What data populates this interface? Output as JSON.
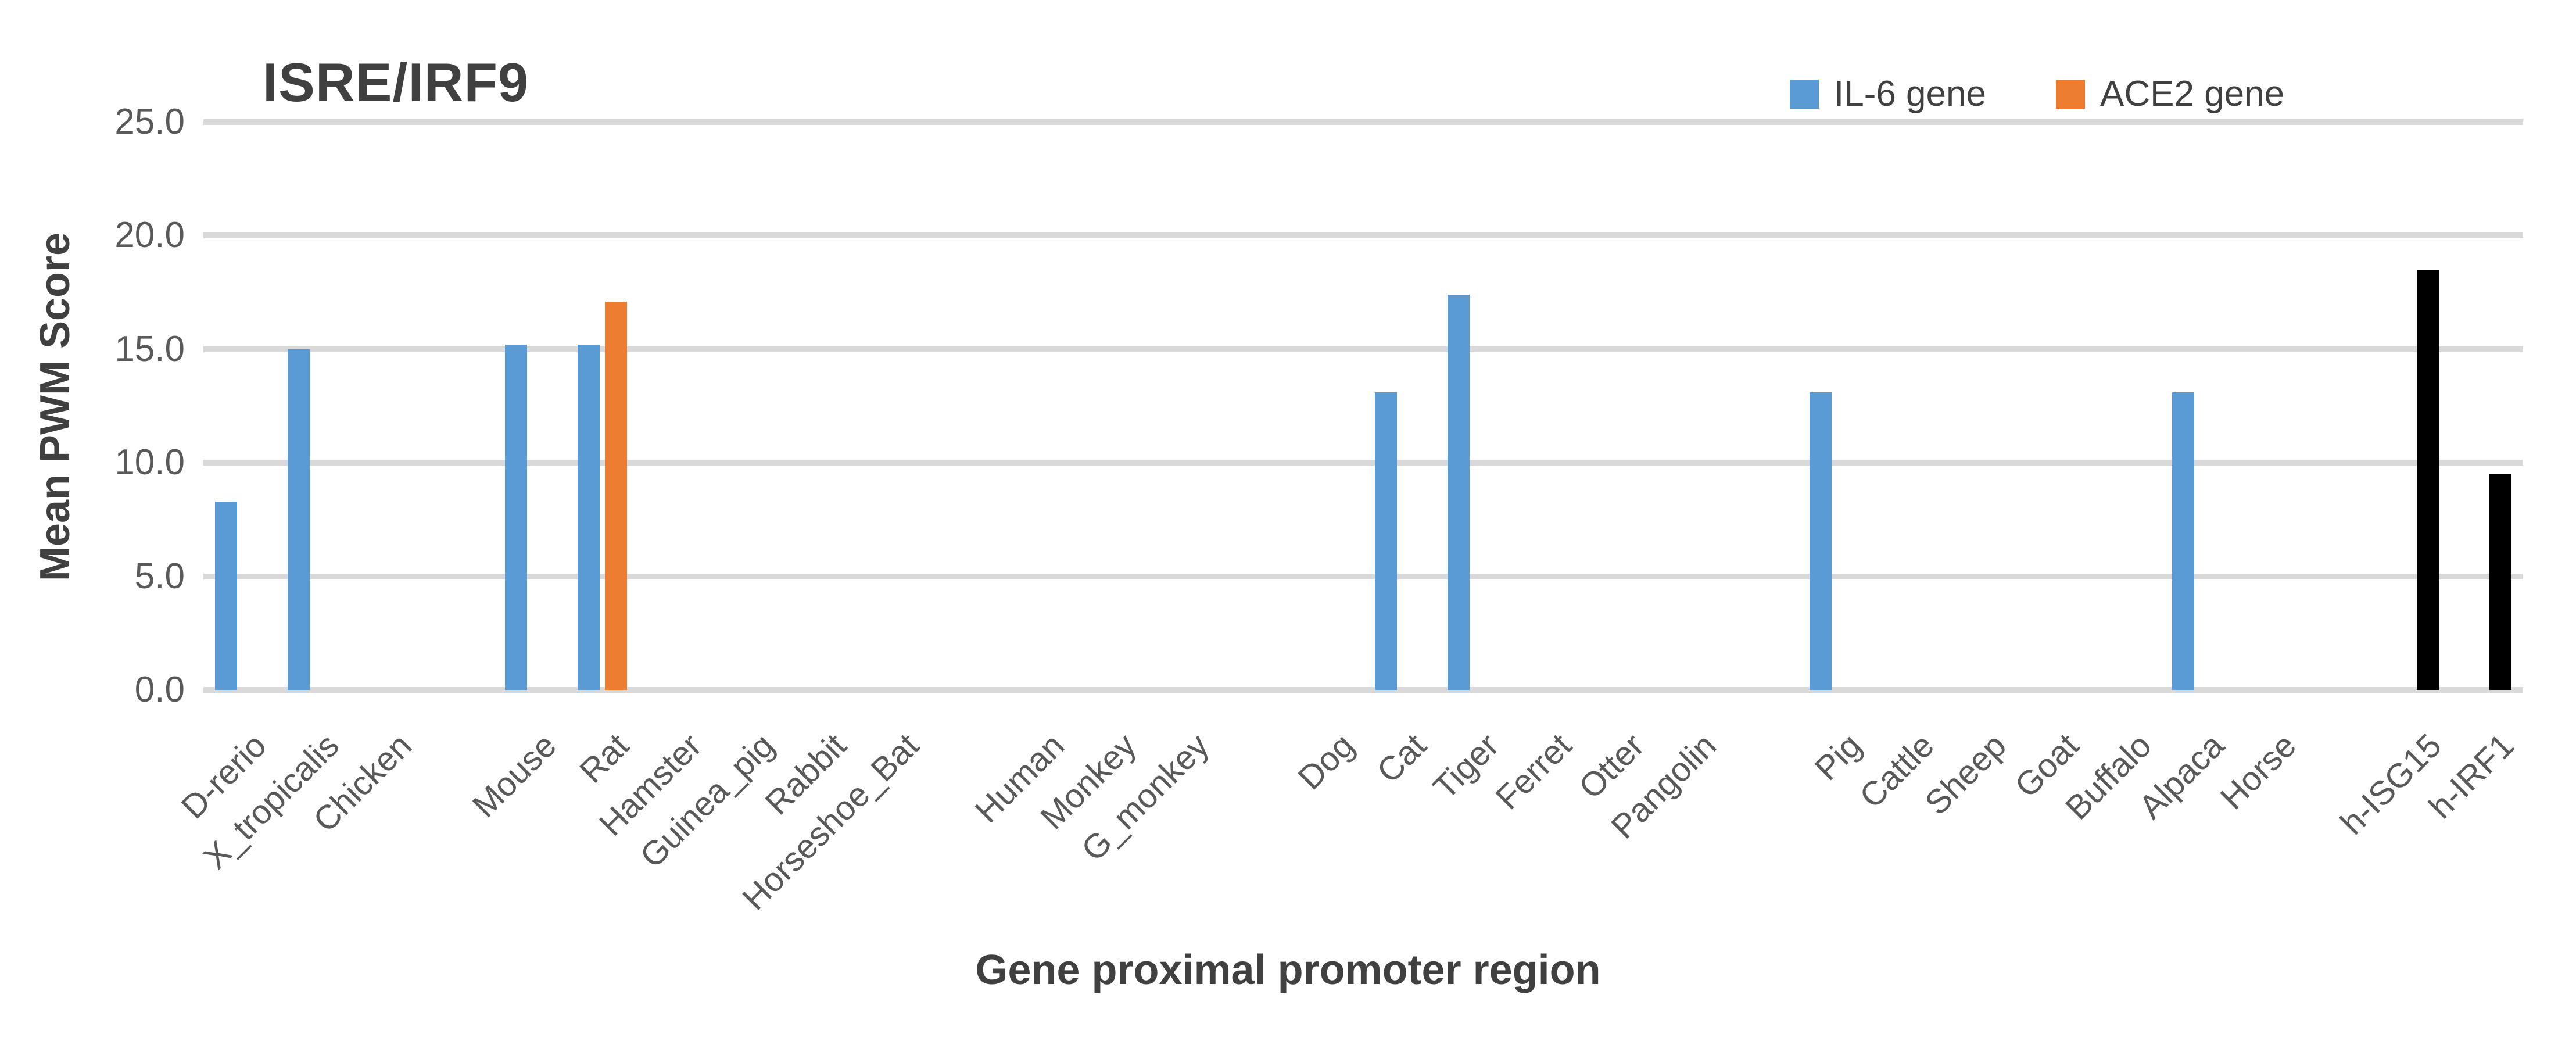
{
  "chart_data": {
    "type": "bar",
    "title": "ISRE/IRF9",
    "xlabel": "Gene proximal promoter region",
    "ylabel": "Mean PWM Score",
    "ylim": [
      0,
      25
    ],
    "ytick_step": 5,
    "ytick_labels": [
      "25.0",
      "20.0",
      "15.0",
      "10.0",
      "5.0",
      "0.0"
    ],
    "grid": true,
    "legend_position": "top-right",
    "legend": [
      {
        "label": "IL-6 gene",
        "color": "#5B9BD5"
      },
      {
        "label": "ACE2 gene",
        "color": "#ED7D31"
      }
    ],
    "categories": [
      "D-rerio",
      "X_tropicalis",
      "Chicken",
      "",
      "Mouse",
      "Rat",
      "Hamster",
      "Guinea_pig",
      "Rabbit",
      "Horseshoe_Bat",
      "",
      "Human",
      "Monkey",
      "G_monkey",
      "",
      "Dog",
      "Cat",
      "Tiger",
      "Ferret",
      "Otter",
      "Pangolin",
      "",
      "Pig",
      "Cattle",
      "Sheep",
      "Goat",
      "Buffalo",
      "Alpaca",
      "Horse",
      "",
      "h-ISG15",
      "h-IRF1"
    ],
    "series": [
      {
        "name": "IL-6 gene",
        "color": "#5B9BD5",
        "position": "left",
        "values": [
          8.3,
          15.0,
          0,
          null,
          15.2,
          15.2,
          0,
          0,
          0,
          0,
          null,
          0,
          0,
          0,
          null,
          0,
          13.1,
          17.4,
          0,
          0,
          0,
          null,
          13.1,
          0,
          0,
          0,
          0,
          13.1,
          0,
          null,
          0,
          0
        ]
      },
      {
        "name": "ACE2 gene",
        "color": "#ED7D31",
        "position": "right",
        "values": [
          0,
          0,
          0,
          null,
          0,
          17.1,
          0,
          0,
          0,
          0,
          null,
          0,
          0,
          0,
          null,
          0,
          0,
          0,
          0,
          0,
          0,
          null,
          0,
          0,
          0,
          0,
          0,
          0,
          0,
          null,
          0,
          0
        ]
      },
      {
        "name": "unlabeled-black",
        "color": "#000000",
        "position": "right",
        "values": [
          0,
          0,
          0,
          null,
          0,
          0,
          0,
          0,
          0,
          0,
          null,
          0,
          0,
          0,
          null,
          0,
          0,
          0,
          0,
          0,
          0,
          null,
          0,
          0,
          0,
          0,
          0,
          0,
          0,
          null,
          18.5,
          9.5
        ]
      }
    ],
    "colors": {
      "gridline": "#D9D9D9",
      "axis_text": "#595959",
      "title_text": "#404040"
    }
  }
}
